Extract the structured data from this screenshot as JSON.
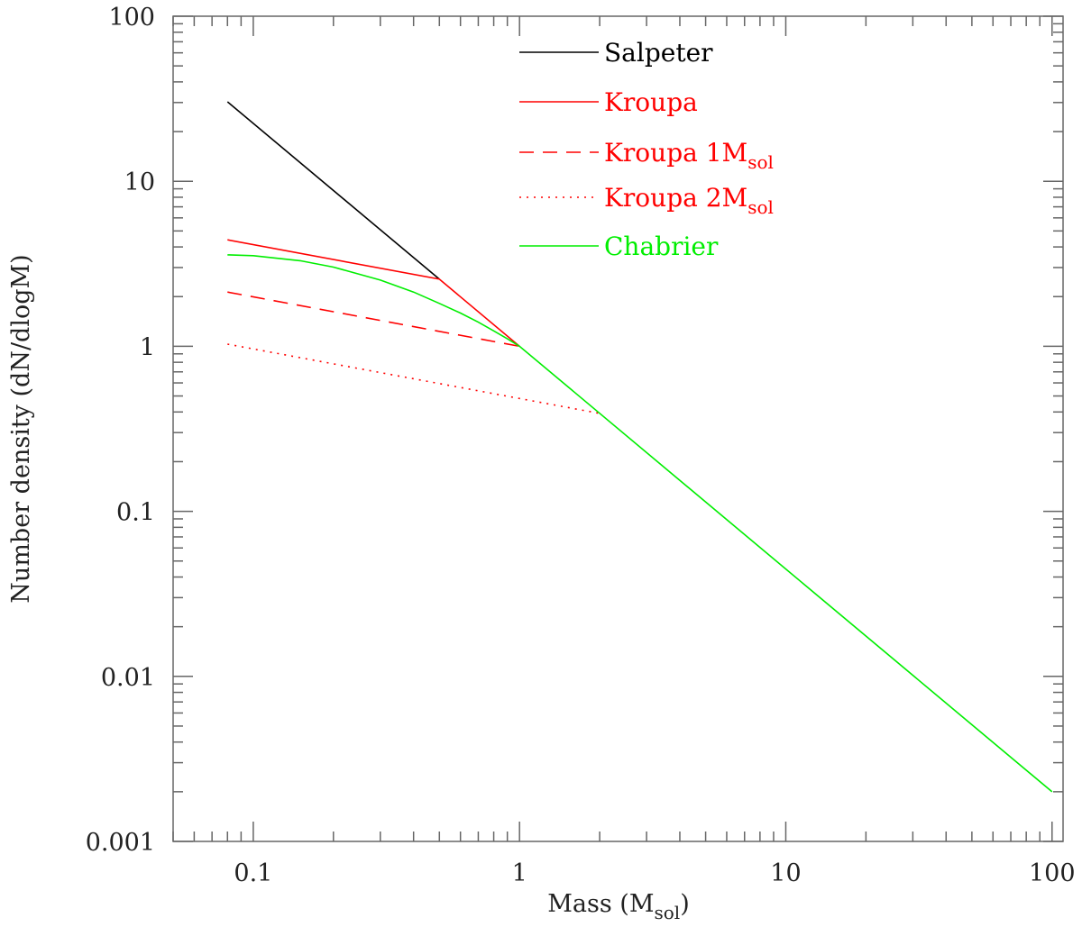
{
  "chart_data": {
    "type": "line",
    "title": "",
    "xlabel": "Mass (M",
    "xlabel_sub": "sol",
    "xlabel_end": ")",
    "ylabel": "Number density (dN/dlogM)",
    "xscale": "log",
    "yscale": "log",
    "xlim": [
      0.05,
      110
    ],
    "ylim": [
      0.001,
      100
    ],
    "grid": false,
    "legend_placement": "top-center",
    "x_ticks": [
      {
        "v": 0.1,
        "label": "0.1"
      },
      {
        "v": 1,
        "label": "1"
      },
      {
        "v": 10,
        "label": "10"
      },
      {
        "v": 100,
        "label": "100"
      }
    ],
    "y_ticks": [
      {
        "v": 0.001,
        "label": "0.001"
      },
      {
        "v": 0.01,
        "label": "0.01"
      },
      {
        "v": 0.1,
        "label": "0.1"
      },
      {
        "v": 1,
        "label": "1"
      },
      {
        "v": 10,
        "label": "10"
      },
      {
        "v": 100,
        "label": "100"
      }
    ],
    "series": [
      {
        "name": "Salpeter",
        "sub": "",
        "color": "#000000",
        "style": "solid",
        "x": [
          0.08,
          0.5
        ],
        "y": [
          30.3,
          2.55
        ]
      },
      {
        "name": "Kroupa",
        "sub": "",
        "color": "#ff0000",
        "style": "solid",
        "x": [
          0.08,
          0.5,
          1
        ],
        "y": [
          4.42,
          2.55,
          1.0
        ]
      },
      {
        "name": "Kroupa 1M",
        "sub": "sol",
        "color": "#ff0000",
        "style": "dashed",
        "x": [
          0.08,
          1
        ],
        "y": [
          2.13,
          1.0
        ]
      },
      {
        "name": "Kroupa 2M",
        "sub": "sol",
        "color": "#ff0000",
        "style": "dotted",
        "x": [
          0.08,
          2
        ],
        "y": [
          1.03,
          0.392
        ]
      },
      {
        "name": "Chabrier",
        "sub": "",
        "color": "#00ee00",
        "style": "solid",
        "x": [
          0.08,
          0.1,
          0.15,
          0.2,
          0.3,
          0.4,
          0.5,
          0.6,
          0.7,
          0.8,
          0.9,
          1,
          100
        ],
        "y": [
          3.58,
          3.54,
          3.3,
          3.02,
          2.52,
          2.13,
          1.82,
          1.59,
          1.4,
          1.24,
          1.11,
          1.0,
          0.002
        ]
      }
    ]
  }
}
